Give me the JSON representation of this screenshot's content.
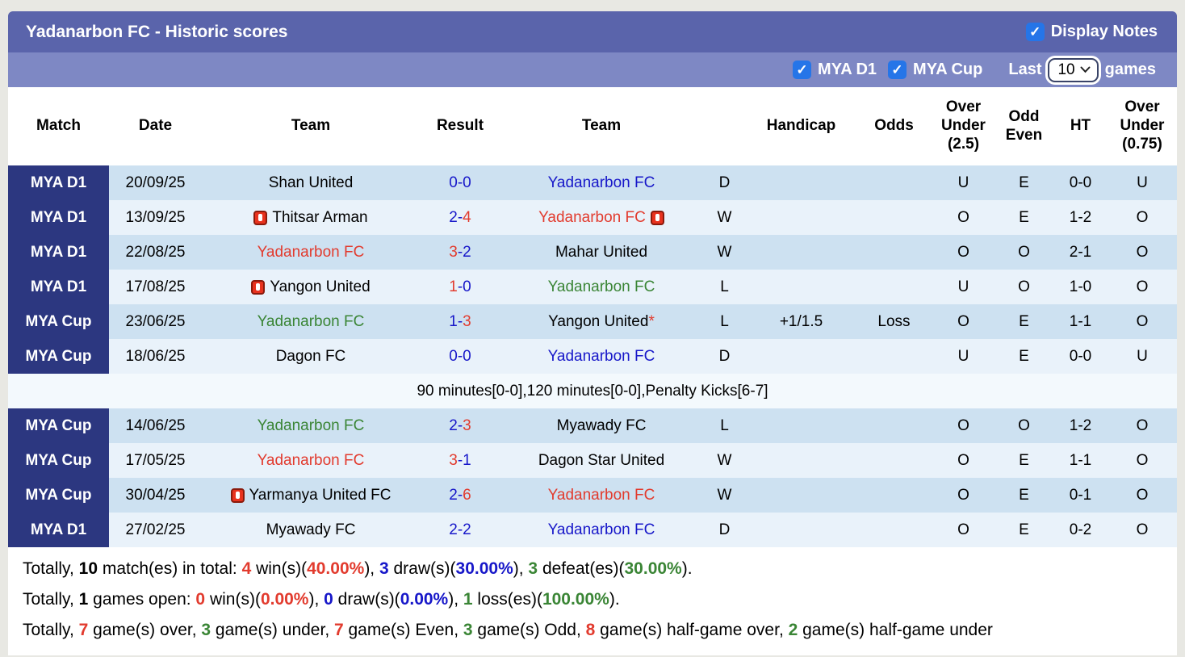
{
  "title": "Yadanarbon FC - Historic scores",
  "display_notes_label": "Display Notes",
  "filters": {
    "league1_label": "MYA D1",
    "league2_label": "MYA Cup",
    "last_label": "Last",
    "games_count": "10",
    "games_label": "games"
  },
  "columns": [
    "Match",
    "Date",
    "Team",
    "Result",
    "Team",
    "",
    "Handicap",
    "Odds",
    "Over\nUnder\n(2.5)",
    "Odd\nEven",
    "HT",
    "Over\nUnder\n(0.75)"
  ],
  "note": {
    "after_row": 6,
    "text": "90 minutes[0-0],120 minutes[0-0],Penalty Kicks[6-7]"
  },
  "rows": [
    {
      "league": "MYA D1",
      "date": "20/09/25",
      "home": {
        "name": "Shan United",
        "color": "black"
      },
      "score": {
        "home": "0",
        "away": "0",
        "home_color": "blue",
        "away_color": "blue"
      },
      "away": {
        "name": "Yadanarbon FC",
        "color": "blue"
      },
      "outcome": {
        "text": "D",
        "color": "blue"
      },
      "handicap": "",
      "odds": {
        "text": "",
        "color": "green"
      },
      "ou25": {
        "text": "U",
        "color": "green"
      },
      "odd_even": {
        "text": "E",
        "color": "red"
      },
      "ht": "0-0",
      "ou075": {
        "text": "U",
        "color": "green"
      }
    },
    {
      "league": "MYA D1",
      "date": "13/09/25",
      "home": {
        "name": "Thitsar Arman",
        "color": "black",
        "card_before": true
      },
      "score": {
        "home": "2",
        "away": "4",
        "home_color": "blue",
        "away_color": "red"
      },
      "away": {
        "name": "Yadanarbon FC",
        "color": "red",
        "card_after": true
      },
      "outcome": {
        "text": "W",
        "color": "red"
      },
      "handicap": "",
      "odds": {
        "text": "",
        "color": "green"
      },
      "ou25": {
        "text": "O",
        "color": "red"
      },
      "odd_even": {
        "text": "E",
        "color": "red"
      },
      "ht": "1-2",
      "ou075": {
        "text": "O",
        "color": "red"
      }
    },
    {
      "league": "MYA D1",
      "date": "22/08/25",
      "home": {
        "name": "Yadanarbon FC",
        "color": "red"
      },
      "score": {
        "home": "3",
        "away": "2",
        "home_color": "red",
        "away_color": "blue"
      },
      "away": {
        "name": "Mahar United",
        "color": "black"
      },
      "outcome": {
        "text": "W",
        "color": "red"
      },
      "handicap": "",
      "odds": {
        "text": "",
        "color": "green"
      },
      "ou25": {
        "text": "O",
        "color": "red"
      },
      "odd_even": {
        "text": "O",
        "color": "green"
      },
      "ht": "2-1",
      "ou075": {
        "text": "O",
        "color": "red"
      }
    },
    {
      "league": "MYA D1",
      "date": "17/08/25",
      "home": {
        "name": "Yangon United",
        "color": "black",
        "card_before": true
      },
      "score": {
        "home": "1",
        "away": "0",
        "home_color": "red",
        "away_color": "blue"
      },
      "away": {
        "name": "Yadanarbon FC",
        "color": "green"
      },
      "outcome": {
        "text": "L",
        "color": "green"
      },
      "handicap": "",
      "odds": {
        "text": "",
        "color": "green"
      },
      "ou25": {
        "text": "U",
        "color": "green"
      },
      "odd_even": {
        "text": "O",
        "color": "green"
      },
      "ht": "1-0",
      "ou075": {
        "text": "O",
        "color": "red"
      }
    },
    {
      "league": "MYA Cup",
      "date": "23/06/25",
      "home": {
        "name": "Yadanarbon FC",
        "color": "green"
      },
      "score": {
        "home": "1",
        "away": "3",
        "home_color": "blue",
        "away_color": "red"
      },
      "away": {
        "name": "Yangon United",
        "color": "black",
        "asterisk": true
      },
      "outcome": {
        "text": "L",
        "color": "green"
      },
      "handicap": "+1/1.5",
      "odds": {
        "text": "Loss",
        "color": "green"
      },
      "ou25": {
        "text": "O",
        "color": "red"
      },
      "odd_even": {
        "text": "E",
        "color": "red"
      },
      "ht": "1-1",
      "ou075": {
        "text": "O",
        "color": "red"
      }
    },
    {
      "league": "MYA Cup",
      "date": "18/06/25",
      "home": {
        "name": "Dagon FC",
        "color": "black"
      },
      "score": {
        "home": "0",
        "away": "0",
        "home_color": "blue",
        "away_color": "blue"
      },
      "away": {
        "name": "Yadanarbon FC",
        "color": "blue"
      },
      "outcome": {
        "text": "D",
        "color": "blue"
      },
      "handicap": "",
      "odds": {
        "text": "",
        "color": "green"
      },
      "ou25": {
        "text": "U",
        "color": "green"
      },
      "odd_even": {
        "text": "E",
        "color": "red"
      },
      "ht": "0-0",
      "ou075": {
        "text": "U",
        "color": "green"
      }
    },
    {
      "league": "MYA Cup",
      "date": "14/06/25",
      "home": {
        "name": "Yadanarbon FC",
        "color": "green"
      },
      "score": {
        "home": "2",
        "away": "3",
        "home_color": "blue",
        "away_color": "red"
      },
      "away": {
        "name": "Myawady FC",
        "color": "black"
      },
      "outcome": {
        "text": "L",
        "color": "green"
      },
      "handicap": "",
      "odds": {
        "text": "",
        "color": "green"
      },
      "ou25": {
        "text": "O",
        "color": "red"
      },
      "odd_even": {
        "text": "O",
        "color": "green"
      },
      "ht": "1-2",
      "ou075": {
        "text": "O",
        "color": "red"
      }
    },
    {
      "league": "MYA Cup",
      "date": "17/05/25",
      "home": {
        "name": "Yadanarbon FC",
        "color": "red"
      },
      "score": {
        "home": "3",
        "away": "1",
        "home_color": "red",
        "away_color": "blue"
      },
      "away": {
        "name": "Dagon Star United",
        "color": "black"
      },
      "outcome": {
        "text": "W",
        "color": "red"
      },
      "handicap": "",
      "odds": {
        "text": "",
        "color": "green"
      },
      "ou25": {
        "text": "O",
        "color": "red"
      },
      "odd_even": {
        "text": "E",
        "color": "red"
      },
      "ht": "1-1",
      "ou075": {
        "text": "O",
        "color": "red"
      }
    },
    {
      "league": "MYA Cup",
      "date": "30/04/25",
      "home": {
        "name": "Yarmanya United FC",
        "color": "black",
        "card_before": true
      },
      "score": {
        "home": "2",
        "away": "6",
        "home_color": "blue",
        "away_color": "red"
      },
      "away": {
        "name": "Yadanarbon FC",
        "color": "red"
      },
      "outcome": {
        "text": "W",
        "color": "red"
      },
      "handicap": "",
      "odds": {
        "text": "",
        "color": "green"
      },
      "ou25": {
        "text": "O",
        "color": "red"
      },
      "odd_even": {
        "text": "E",
        "color": "red"
      },
      "ht": "0-1",
      "ou075": {
        "text": "O",
        "color": "red"
      }
    },
    {
      "league": "MYA D1",
      "date": "27/02/25",
      "home": {
        "name": "Myawady FC",
        "color": "black"
      },
      "score": {
        "home": "2",
        "away": "2",
        "home_color": "blue",
        "away_color": "blue"
      },
      "away": {
        "name": "Yadanarbon FC",
        "color": "blue"
      },
      "outcome": {
        "text": "D",
        "color": "blue"
      },
      "handicap": "",
      "odds": {
        "text": "",
        "color": "green"
      },
      "ou25": {
        "text": "O",
        "color": "red"
      },
      "odd_even": {
        "text": "E",
        "color": "red"
      },
      "ht": "0-2",
      "ou075": {
        "text": "O",
        "color": "red"
      }
    }
  ],
  "summary": [
    [
      {
        "t": "Totally, "
      },
      {
        "t": "10",
        "b": 1
      },
      {
        "t": " match(es) in total: "
      },
      {
        "t": "4",
        "c": "red",
        "b": 1
      },
      {
        "t": " win(s)("
      },
      {
        "t": "40.00%",
        "c": "red",
        "b": 1
      },
      {
        "t": "), "
      },
      {
        "t": "3",
        "c": "blue",
        "b": 1
      },
      {
        "t": " draw(s)("
      },
      {
        "t": "30.00%",
        "c": "blue",
        "b": 1
      },
      {
        "t": "), "
      },
      {
        "t": "3",
        "c": "green",
        "b": 1
      },
      {
        "t": " defeat(es)("
      },
      {
        "t": "30.00%",
        "c": "green",
        "b": 1
      },
      {
        "t": ")."
      }
    ],
    [
      {
        "t": "Totally, "
      },
      {
        "t": "1",
        "b": 1
      },
      {
        "t": " games open: "
      },
      {
        "t": "0",
        "c": "red",
        "b": 1
      },
      {
        "t": " win(s)("
      },
      {
        "t": "0.00%",
        "c": "red",
        "b": 1
      },
      {
        "t": "), "
      },
      {
        "t": "0",
        "c": "blue",
        "b": 1
      },
      {
        "t": " draw(s)("
      },
      {
        "t": "0.00%",
        "c": "blue",
        "b": 1
      },
      {
        "t": "), "
      },
      {
        "t": "1",
        "c": "green",
        "b": 1
      },
      {
        "t": " loss(es)("
      },
      {
        "t": "100.00%",
        "c": "green",
        "b": 1
      },
      {
        "t": ")."
      }
    ],
    [
      {
        "t": "Totally, "
      },
      {
        "t": "7",
        "c": "red",
        "b": 1
      },
      {
        "t": " game(s) over, "
      },
      {
        "t": "3",
        "c": "green",
        "b": 1
      },
      {
        "t": " game(s) under, "
      },
      {
        "t": "7",
        "c": "red",
        "b": 1
      },
      {
        "t": " game(s) Even, "
      },
      {
        "t": "3",
        "c": "green",
        "b": 1
      },
      {
        "t": " game(s) Odd, "
      },
      {
        "t": "8",
        "c": "red",
        "b": 1
      },
      {
        "t": " game(s) half-game over, "
      },
      {
        "t": "2",
        "c": "green",
        "b": 1
      },
      {
        "t": " game(s) half-game under"
      }
    ]
  ],
  "colors": {
    "accent_bar": "#5a64ab",
    "accent_bar2": "#7e88c4",
    "league_cell": "#2c3780",
    "stripe_dark": "#cde1f1",
    "stripe_light": "#e9f2fa",
    "win_red": "#e23b2e",
    "draw_blue": "#1717c9",
    "loss_green": "#3a8535",
    "checkbox_blue": "#2575e8"
  }
}
